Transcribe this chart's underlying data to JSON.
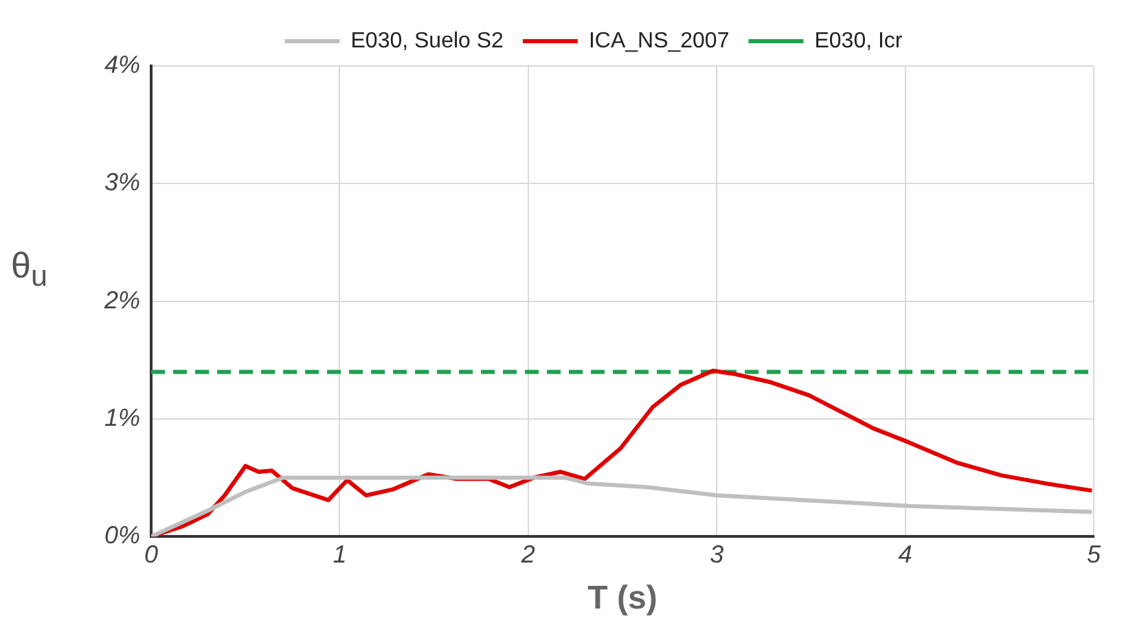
{
  "chart_data": {
    "type": "line",
    "xlabel": "T (s)",
    "ylabel": "θ$_{u}$",
    "xlim": [
      0,
      5
    ],
    "xticks": [
      0,
      1,
      2,
      3,
      4,
      5
    ],
    "ylim": [
      0,
      4
    ],
    "yticks": [
      {
        "value": 0,
        "label": "0%"
      },
      {
        "value": 1,
        "label": "1%"
      },
      {
        "value": 2,
        "label": "2%"
      },
      {
        "value": 3,
        "label": "3%"
      },
      {
        "value": 4,
        "label": "4%"
      }
    ],
    "grid": true,
    "legend": "top",
    "marker": "none",
    "series": [
      {
        "name": "E030, Suelo S2",
        "color": "#bfbfbf",
        "x": [
          0,
          0.3,
          0.5,
          0.7,
          1.5,
          2.2,
          2.32,
          2.63,
          3.0,
          4.02,
          4.99
        ],
        "values": [
          0,
          0.22,
          0.38,
          0.5,
          0.5,
          0.5,
          0.45,
          0.42,
          0.35,
          0.26,
          0.21
        ]
      },
      {
        "name": "ICA_NS_2007",
        "color": "#e00000",
        "x": [
          0,
          0.17,
          0.3,
          0.39,
          0.5,
          0.57,
          0.64,
          0.75,
          0.94,
          1.04,
          1.14,
          1.28,
          1.47,
          1.62,
          1.79,
          1.9,
          2.03,
          2.17,
          2.3,
          2.49,
          2.66,
          2.81,
          2.98,
          3.1,
          3.29,
          3.49,
          3.83,
          4.02,
          4.27,
          4.51,
          4.75,
          4.99
        ],
        "values": [
          0,
          0.09,
          0.19,
          0.35,
          0.6,
          0.55,
          0.56,
          0.41,
          0.31,
          0.48,
          0.35,
          0.4,
          0.53,
          0.49,
          0.49,
          0.42,
          0.5,
          0.55,
          0.49,
          0.75,
          1.1,
          1.29,
          1.41,
          1.38,
          1.31,
          1.2,
          0.92,
          0.8,
          0.63,
          0.52,
          0.45,
          0.39
        ]
      },
      {
        "name": "E030, Icr",
        "color": "#1fa04f",
        "line_style": "dashed",
        "x": [
          0,
          5
        ],
        "values": [
          1.4,
          1.4
        ]
      }
    ]
  }
}
